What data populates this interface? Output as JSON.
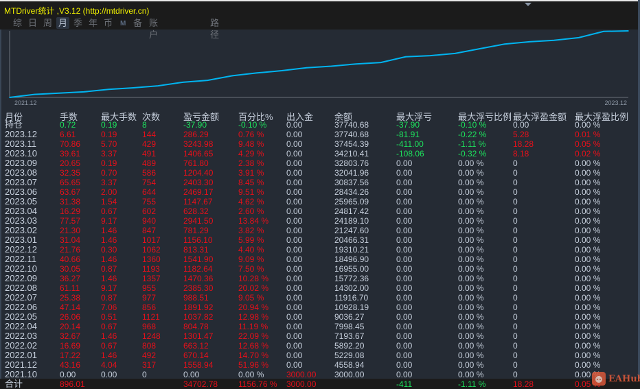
{
  "window": {
    "title": "MTDriver统计 ,V3.12 (http://mtdriver.cn)"
  },
  "tabs": [
    {
      "label": "综",
      "active": false
    },
    {
      "label": "日",
      "active": false
    },
    {
      "label": "周",
      "active": false
    },
    {
      "label": "月",
      "active": true
    },
    {
      "label": "季",
      "active": false
    },
    {
      "label": "年",
      "active": false
    },
    {
      "label": "币",
      "active": false
    },
    {
      "label": "M",
      "active": false
    },
    {
      "label": "备",
      "active": false
    },
    {
      "label": "账户",
      "active": false
    },
    {
      "label": "路径",
      "active": false
    }
  ],
  "chart_data": {
    "type": "line",
    "x_start_label": "2021.12",
    "x_end_label": "2023.12",
    "series_name": "余额",
    "color": "#00b4f0",
    "x": [
      "2021.10",
      "2021.12",
      "2022.01",
      "2022.02",
      "2022.03",
      "2022.04",
      "2022.05",
      "2022.06",
      "2022.07",
      "2022.08",
      "2022.09",
      "2022.10",
      "2022.11",
      "2022.12",
      "2023.01",
      "2023.02",
      "2023.03",
      "2023.04",
      "2023.05",
      "2023.06",
      "2023.07",
      "2023.08",
      "2023.09",
      "2023.10",
      "2023.11",
      "2023.12"
    ],
    "values": [
      3000.0,
      4558.94,
      5229.08,
      5892.2,
      7193.67,
      7998.45,
      9036.27,
      10928.19,
      11916.7,
      14302.0,
      15772.36,
      16955.0,
      18496.9,
      19310.21,
      20466.31,
      21247.6,
      24189.1,
      24817.42,
      25965.09,
      28434.26,
      30837.56,
      32041.96,
      32803.76,
      34210.41,
      37454.39,
      37740.68
    ]
  },
  "table": {
    "headers": [
      "月份",
      "手数",
      "最大手数",
      "次数",
      "盈亏金额",
      "百分比%",
      "出入金",
      "余额",
      "最大浮亏",
      "最大浮亏比例",
      "最大浮盈金额",
      "最大浮盈比例"
    ],
    "rows": [
      [
        "持仓",
        "0.72",
        "0.19",
        "8",
        "-37.90",
        "-0.10 %",
        "0.00",
        "37740.68",
        "-37.90",
        "-0.10 %",
        "0.00",
        "0.00 %"
      ],
      [
        "2023.12",
        "6.61",
        "0.19",
        "144",
        "286.29",
        "0.76 %",
        "0.00",
        "37740.68",
        "-81.91",
        "-0.22 %",
        "5.28",
        "0.01 %"
      ],
      [
        "2023.11",
        "70.86",
        "5.70",
        "429",
        "3243.98",
        "9.48 %",
        "0.00",
        "37454.39",
        "-411.00",
        "-1.11 %",
        "18.28",
        "0.05 %"
      ],
      [
        "2023.10",
        "39.61",
        "3.37",
        "491",
        "1406.65",
        "4.29 %",
        "0.00",
        "34210.41",
        "-108.06",
        "-0.32 %",
        "8.18",
        "0.02 %"
      ],
      [
        "2023.09",
        "20.65",
        "0.19",
        "489",
        "761.80",
        "2.38 %",
        "0.00",
        "32803.76",
        "0.00",
        "0.00 %",
        "0",
        "0.00 %"
      ],
      [
        "2023.08",
        "32.35",
        "0.70",
        "586",
        "1204.40",
        "3.91 %",
        "0.00",
        "32041.96",
        "0.00",
        "0.00 %",
        "0",
        "0.00 %"
      ],
      [
        "2023.07",
        "65.65",
        "3.37",
        "754",
        "2403.30",
        "8.45 %",
        "0.00",
        "30837.56",
        "0.00",
        "0.00 %",
        "0",
        "0.00 %"
      ],
      [
        "2023.06",
        "63.67",
        "2.00",
        "644",
        "2469.17",
        "9.51 %",
        "0.00",
        "28434.26",
        "0.00",
        "0.00 %",
        "0",
        "0.00 %"
      ],
      [
        "2023.05",
        "31.38",
        "1.54",
        "755",
        "1147.67",
        "4.62 %",
        "0.00",
        "25965.09",
        "0.00",
        "0.00 %",
        "0",
        "0.00 %"
      ],
      [
        "2023.04",
        "16.29",
        "0.67",
        "602",
        "628.32",
        "2.60 %",
        "0.00",
        "24817.42",
        "0.00",
        "0.00 %",
        "0",
        "0.00 %"
      ],
      [
        "2023.03",
        "77.57",
        "9.17",
        "940",
        "2941.50",
        "13.84 %",
        "0.00",
        "24189.10",
        "0.00",
        "0.00 %",
        "0",
        "0.00 %"
      ],
      [
        "2023.02",
        "21.30",
        "1.46",
        "847",
        "781.29",
        "3.82 %",
        "0.00",
        "21247.60",
        "0.00",
        "0.00 %",
        "0",
        "0.00 %"
      ],
      [
        "2023.01",
        "31.04",
        "1.46",
        "1017",
        "1156.10",
        "5.99 %",
        "0.00",
        "20466.31",
        "0.00",
        "0.00 %",
        "0",
        "0.00 %"
      ],
      [
        "2022.12",
        "21.76",
        "0.30",
        "1062",
        "813.31",
        "4.40 %",
        "0.00",
        "19310.21",
        "0.00",
        "0.00 %",
        "0",
        "0.00 %"
      ],
      [
        "2022.11",
        "40.66",
        "1.46",
        "1360",
        "1541.90",
        "9.09 %",
        "0.00",
        "18496.90",
        "0.00",
        "0.00 %",
        "0",
        "0.00 %"
      ],
      [
        "2022.10",
        "30.05",
        "0.87",
        "1193",
        "1182.64",
        "7.50 %",
        "0.00",
        "16955.00",
        "0.00",
        "0.00 %",
        "0",
        "0.00 %"
      ],
      [
        "2022.09",
        "36.27",
        "1.46",
        "1357",
        "1470.36",
        "10.28 %",
        "0.00",
        "15772.36",
        "0.00",
        "0.00 %",
        "0",
        "0.00 %"
      ],
      [
        "2022.08",
        "61.11",
        "9.17",
        "955",
        "2385.30",
        "20.02 %",
        "0.00",
        "14302.00",
        "0.00",
        "0.00 %",
        "0",
        "0.00 %"
      ],
      [
        "2022.07",
        "25.38",
        "0.87",
        "977",
        "988.51",
        "9.05 %",
        "0.00",
        "11916.70",
        "0.00",
        "0.00 %",
        "0",
        "0.00 %"
      ],
      [
        "2022.06",
        "47.14",
        "7.06",
        "856",
        "1891.92",
        "20.94 %",
        "0.00",
        "10928.19",
        "0.00",
        "0.00 %",
        "0",
        "0.00 %"
      ],
      [
        "2022.05",
        "26.06",
        "0.51",
        "1121",
        "1037.82",
        "12.98 %",
        "0.00",
        "9036.27",
        "0.00",
        "0.00 %",
        "0",
        "0.00 %"
      ],
      [
        "2022.04",
        "20.14",
        "0.67",
        "968",
        "804.78",
        "11.19 %",
        "0.00",
        "7998.45",
        "0.00",
        "0.00 %",
        "0",
        "0.00 %"
      ],
      [
        "2022.03",
        "32.67",
        "1.46",
        "1248",
        "1301.47",
        "22.09 %",
        "0.00",
        "7193.67",
        "0.00",
        "0.00 %",
        "0",
        "0.00 %"
      ],
      [
        "2022.02",
        "16.69",
        "0.67",
        "808",
        "663.12",
        "12.68 %",
        "0.00",
        "5892.20",
        "0.00",
        "0.00 %",
        "0",
        "0.00 %"
      ],
      [
        "2022.01",
        "17.22",
        "1.46",
        "492",
        "670.14",
        "14.70 %",
        "0.00",
        "5229.08",
        "0.00",
        "0.00 %",
        "0",
        "0.00 %"
      ],
      [
        "2021.12",
        "43.16",
        "4.04",
        "317",
        "1558.94",
        "51.96 %",
        "0.00",
        "4558.94",
        "0.00",
        "0.00 %",
        "0",
        "0.00 %"
      ],
      [
        "2021.10",
        "0.00",
        "0.00",
        "0",
        "0.00",
        "0.00 %",
        "3000.00",
        "3000.00",
        "0.00",
        "0.00 %",
        "0",
        "0.00 %"
      ]
    ],
    "total": [
      "合计",
      "896.01",
      "",
      "",
      "34702.78",
      "1156.76 %",
      "3000.00",
      "",
      "-411",
      "-1.11 %",
      "18.28",
      "0.05 %"
    ]
  },
  "watermark": {
    "text": "EAHub"
  },
  "colors": {
    "background": "#252b34",
    "red": "#e8101a",
    "green": "#1de35d",
    "title": "#f2f200",
    "line": "#00b4f0"
  }
}
